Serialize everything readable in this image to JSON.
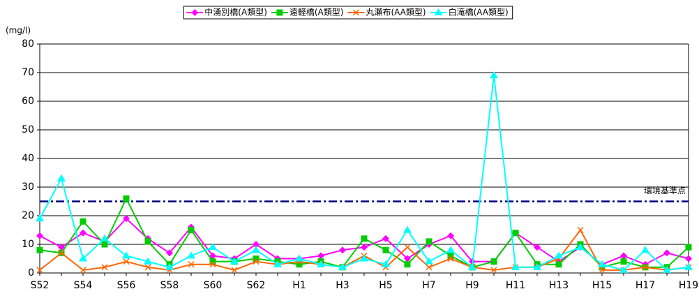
{
  "chart_data": {
    "type": "line",
    "y_unit": "(mg/l)",
    "categories": [
      "S52",
      null,
      "S54",
      null,
      "S56",
      null,
      "S58",
      null,
      "S60",
      null,
      "S62",
      null,
      "H1",
      null,
      "H3",
      null,
      "H5",
      null,
      "H7",
      null,
      "H9",
      null,
      "H11",
      null,
      "H13",
      null,
      "H15",
      null,
      "H17",
      null,
      "H19"
    ],
    "series": [
      {
        "name": "中湧別橋(A類型)",
        "color": "#ff00ff",
        "marker": "diamond",
        "values": [
          13,
          9,
          14,
          11,
          19,
          12,
          7,
          16,
          6,
          5,
          10,
          5,
          5,
          6,
          8,
          9,
          12,
          5,
          10,
          13,
          4,
          4,
          14,
          9,
          4,
          9,
          3,
          6,
          3,
          7,
          5
        ]
      },
      {
        "name": "遠軽橋(A類型)",
        "color": "#00cc00",
        "marker": "square",
        "values": [
          8,
          7,
          18,
          10,
          26,
          11,
          3,
          15,
          4,
          4,
          5,
          4,
          3,
          4,
          2,
          12,
          8,
          3,
          11,
          6,
          2,
          4,
          14,
          3,
          3,
          10,
          2,
          4,
          2,
          2,
          9
        ]
      },
      {
        "name": "丸瀬布(AA類型)",
        "color": "#ff6600",
        "marker": "x",
        "values": [
          1,
          7,
          1,
          2,
          4,
          2,
          1,
          3,
          3,
          1,
          4,
          3,
          4,
          3,
          2,
          6,
          2,
          9,
          2,
          5,
          2,
          1,
          2,
          2,
          5,
          15,
          1,
          1,
          2,
          1,
          2
        ]
      },
      {
        "name": "白滝橋(AA類型)",
        "color": "#00ffff",
        "marker": "triangle",
        "values": [
          19,
          33,
          5,
          12,
          6,
          4,
          2,
          6,
          9,
          4,
          8,
          3,
          5,
          3,
          2,
          5,
          3,
          15,
          4,
          8,
          2,
          69,
          2,
          2,
          6,
          9,
          3,
          1,
          8,
          1,
          2
        ]
      }
    ],
    "reference_line": {
      "value": 25,
      "label": "環境基準点",
      "color": "#000080"
    },
    "ylim": [
      0,
      80
    ],
    "yticks": [
      0,
      10,
      20,
      30,
      40,
      50,
      60,
      70,
      80
    ],
    "grid": true,
    "legend": "top"
  }
}
